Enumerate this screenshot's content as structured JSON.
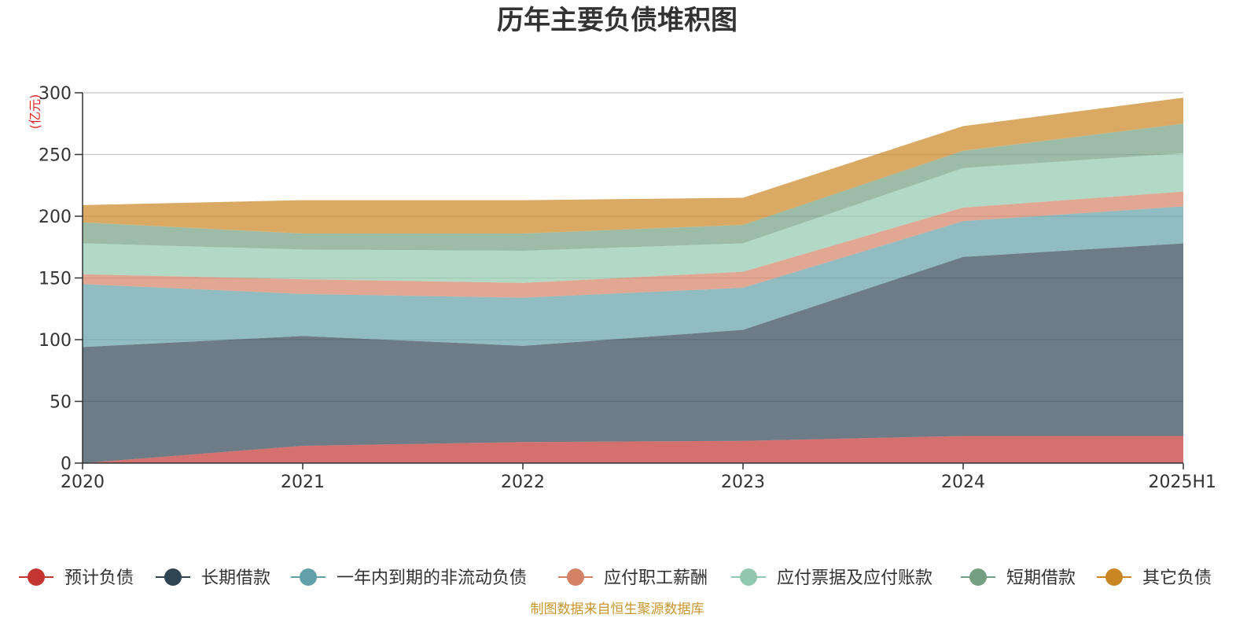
{
  "title": "历年主要负债堆积图",
  "unit_label": "(亿元)",
  "source_note": "制图数据来自恒生聚源数据库",
  "chart_data": {
    "type": "area",
    "stacked": true,
    "title": "历年主要负债堆积图",
    "ylabel": "(亿元)",
    "ylim": [
      0,
      300
    ],
    "yticks": [
      0,
      50,
      100,
      150,
      200,
      250,
      300
    ],
    "grid": true,
    "legend_position": "bottom",
    "categories": [
      "2020",
      "2021",
      "2022",
      "2023",
      "2024",
      "2025H1"
    ],
    "series": [
      {
        "name": "预计负债",
        "color": "#c23531",
        "values": [
          0,
          14,
          17,
          18,
          22,
          22
        ]
      },
      {
        "name": "长期借款",
        "color": "#2f4554",
        "values": [
          94,
          89,
          78,
          90,
          145,
          156
        ]
      },
      {
        "name": "一年内到期的非流动负债",
        "color": "#61a0a8",
        "values": [
          51,
          34,
          39,
          34,
          29,
          30
        ]
      },
      {
        "name": "应付职工薪酬",
        "color": "#d48265",
        "values": [
          8,
          12,
          12,
          13,
          11,
          12
        ]
      },
      {
        "name": "应付票据及应付账款",
        "color": "#91c7ae",
        "values": [
          25,
          24,
          26,
          23,
          32,
          31
        ]
      },
      {
        "name": "短期借款",
        "color": "#749f83",
        "values": [
          17,
          13,
          14,
          15,
          14,
          24
        ]
      },
      {
        "name": "其它负债",
        "color": "#ca8622",
        "values": [
          14,
          27,
          27,
          22,
          20,
          21
        ]
      }
    ]
  }
}
